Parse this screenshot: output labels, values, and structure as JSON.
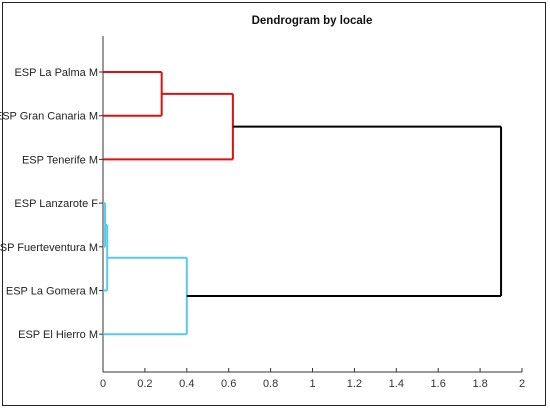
{
  "chart_data": {
    "type": "dendrogram",
    "title": "Dendrogram by locale",
    "xlim": [
      0,
      2
    ],
    "x_ticks": [
      "0",
      "0.2",
      "0.4",
      "0.6",
      "0.8",
      "1",
      "1.2",
      "1.4",
      "1.6",
      "1.8",
      "2"
    ],
    "leaves": [
      "ESP La Palma M",
      "ESP Gran Canaria M",
      "ESP Tenerife M",
      "ESP Lanzarote F",
      "ESP Fuerteventura M",
      "ESP La Gomera M",
      "ESP El Hierro M"
    ],
    "merges": [
      {
        "id": "c1",
        "children": [
          "ESP La Palma M",
          "ESP Gran Canaria M"
        ],
        "height": 0.28,
        "color": "#dd1111"
      },
      {
        "id": "c2",
        "children": [
          "c1",
          "ESP Tenerife M"
        ],
        "height": 0.62,
        "color": "#dd1111"
      },
      {
        "id": "c3",
        "children": [
          "ESP Lanzarote F",
          "ESP Fuerteventura M"
        ],
        "height": 0.01,
        "color": "#55ccee"
      },
      {
        "id": "c4",
        "children": [
          "c3",
          "ESP La Gomera M"
        ],
        "height": 0.02,
        "color": "#55ccee"
      },
      {
        "id": "c5",
        "children": [
          "c4",
          "ESP El Hierro M"
        ],
        "height": 0.4,
        "color": "#55ccee"
      },
      {
        "id": "c6",
        "children": [
          "c2",
          "c5"
        ],
        "height": 1.9,
        "color": "#000000"
      }
    ],
    "colors": {
      "cluster_red": "#dd1111",
      "cluster_cyan": "#55ccee",
      "root": "#000000",
      "axis": "#333333"
    }
  }
}
